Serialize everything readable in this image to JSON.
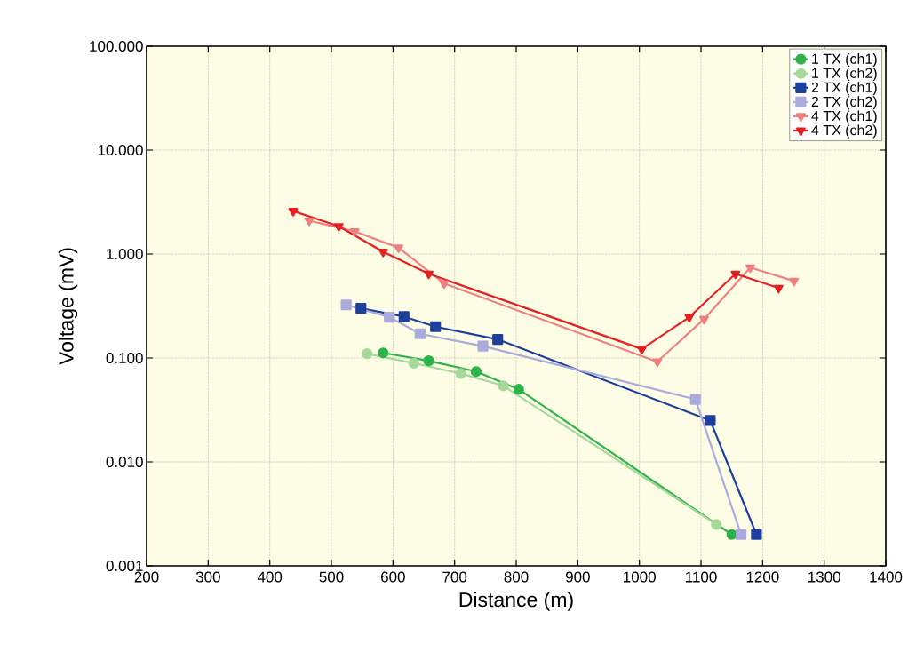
{
  "chart_data": {
    "type": "line",
    "xlabel": "Distance (m)",
    "ylabel": "Voltage (mV)",
    "log": "y",
    "grid": true,
    "legend": "top right",
    "line_style": "solid",
    "xlim": [
      200,
      1400
    ],
    "xticks": [
      200,
      300,
      400,
      500,
      600,
      700,
      800,
      900,
      1000,
      1100,
      1200,
      1300,
      1400
    ],
    "ylim": [
      0.001,
      100
    ],
    "yticks": [
      {
        "value": 0.001,
        "label": "0.001"
      },
      {
        "value": 0.01,
        "label": "0.010"
      },
      {
        "value": 0.1,
        "label": "0.100"
      },
      {
        "value": 1,
        "label": "1.000"
      },
      {
        "value": 10,
        "label": "10.000"
      },
      {
        "value": 100,
        "label": "100.000"
      }
    ],
    "series": [
      {
        "name": "1 TX (ch1)",
        "color": "#2db34a",
        "marker": "circle",
        "x": [
          584,
          658,
          735,
          804,
          1150
        ],
        "values": [
          0.112,
          0.094,
          0.074,
          0.05,
          0.002
        ]
      },
      {
        "name": "1 TX (ch2)",
        "color": "#a6d89a",
        "marker": "circle",
        "x": [
          558,
          634,
          710,
          779,
          1125
        ],
        "values": [
          0.11,
          0.089,
          0.071,
          0.054,
          0.0025
        ]
      },
      {
        "name": "2 TX (ch1)",
        "color": "#1f3f9c",
        "marker": "square",
        "x": [
          548,
          618,
          669,
          770,
          1115,
          1190
        ],
        "values": [
          0.3,
          0.25,
          0.2,
          0.151,
          0.025,
          0.002
        ]
      },
      {
        "name": "2 TX (ch2)",
        "color": "#aaaadd",
        "marker": "square",
        "x": [
          524,
          594,
          644,
          746,
          1091,
          1165
        ],
        "values": [
          0.324,
          0.247,
          0.171,
          0.13,
          0.04,
          0.002
        ]
      },
      {
        "name": "4 TX (ch1)",
        "color": "#f08080",
        "marker": "triangle",
        "x": [
          464,
          538,
          609,
          683,
          1029,
          1105,
          1180,
          1251
        ],
        "values": [
          2.09,
          1.65,
          1.15,
          0.52,
          0.092,
          0.237,
          0.74,
          0.55
        ]
      },
      {
        "name": "4 TX (ch2)",
        "color": "#e52020",
        "marker": "triangle",
        "x": [
          438,
          512,
          584,
          658,
          1004,
          1081,
          1156,
          1226
        ],
        "values": [
          2.59,
          1.85,
          1.05,
          0.645,
          0.122,
          0.247,
          0.645,
          0.471
        ]
      }
    ]
  }
}
